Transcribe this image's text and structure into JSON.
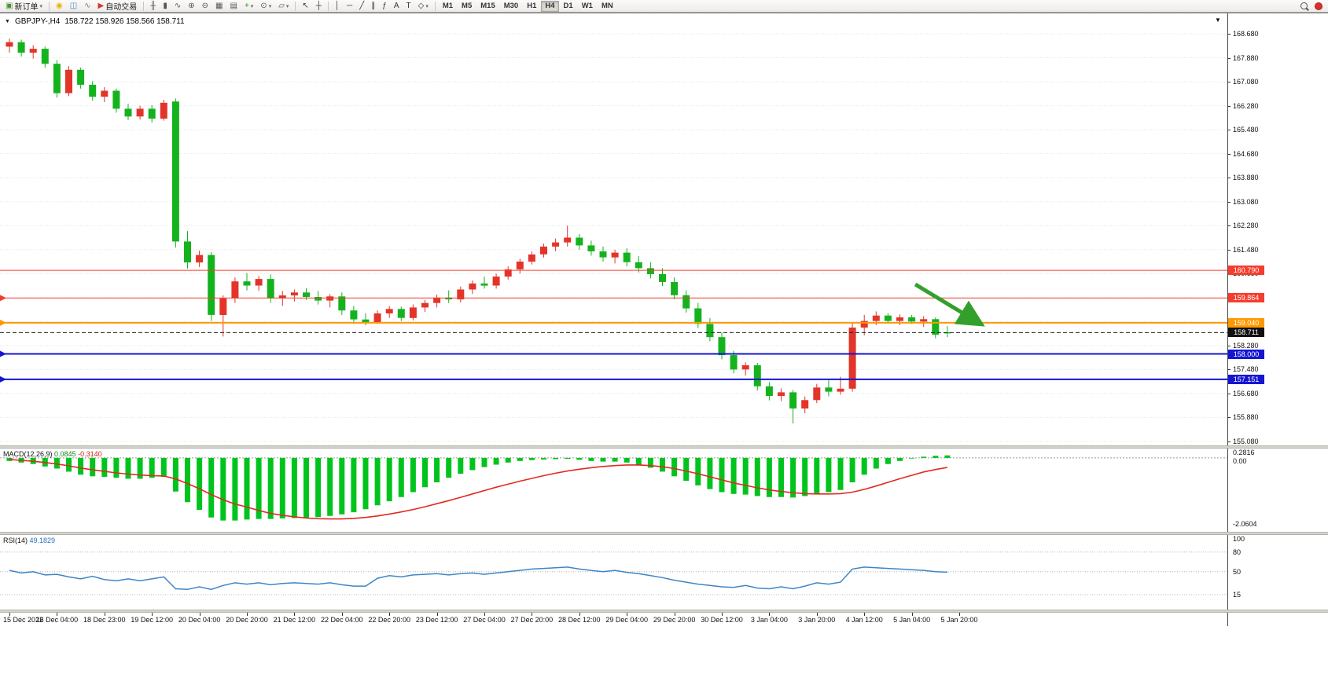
{
  "icons": {
    "caret_down": "▼",
    "caret_small": "▾"
  },
  "toolbar": {
    "items": [
      {
        "name": "new-order-button",
        "icon": "new-order",
        "glyph": "▣",
        "color": "#4f8f3c",
        "label": "新订单",
        "caret": true
      },
      {
        "type": "sep"
      },
      {
        "name": "ideas-button",
        "icon": "lightbulb",
        "glyph": "◉",
        "color": "#e2b400"
      },
      {
        "name": "community-button",
        "icon": "people",
        "glyph": "◫",
        "color": "#4d82c8"
      },
      {
        "name": "signals-button",
        "icon": "broadcast",
        "glyph": "∿",
        "color": "#7a7a7a"
      },
      {
        "name": "auto-trading-button",
        "icon": "play",
        "glyph": "▶",
        "color": "#d23b2f",
        "label": "自动交易"
      },
      {
        "type": "sep"
      },
      {
        "name": "bar-chart-button",
        "icon": "bar-chart",
        "glyph": "╫",
        "color": "#555"
      },
      {
        "name": "candlestick-button",
        "icon": "candlestick",
        "glyph": "▮",
        "color": "#555"
      },
      {
        "name": "line-chart-button",
        "icon": "line-chart",
        "glyph": "∿",
        "color": "#555"
      },
      {
        "name": "zoom-in-button",
        "icon": "zoom-in",
        "glyph": "⊕",
        "color": "#555"
      },
      {
        "name": "zoom-out-button",
        "icon": "zoom-out",
        "glyph": "⊖",
        "color": "#555"
      },
      {
        "name": "tile-windows-button",
        "icon": "tile-windows",
        "glyph": "▦",
        "color": "#555"
      },
      {
        "name": "auto-arrange-button",
        "icon": "grid",
        "glyph": "▤",
        "color": "#555"
      },
      {
        "name": "indicators-button",
        "icon": "indicator-plus",
        "glyph": "+",
        "color": "#1a9c1a",
        "caret": true
      },
      {
        "name": "periods-button",
        "icon": "clock",
        "glyph": "⊙",
        "color": "#555",
        "caret": true
      },
      {
        "name": "templates-button",
        "icon": "template",
        "glyph": "▱",
        "color": "#555",
        "caret": true
      },
      {
        "type": "sep"
      },
      {
        "name": "cursor-button",
        "icon": "cursor-arrow",
        "glyph": "↖",
        "color": "#333"
      },
      {
        "name": "crosshair-button",
        "icon": "crosshair",
        "glyph": "┼",
        "color": "#333"
      },
      {
        "type": "sep"
      },
      {
        "name": "vertical-line-button",
        "icon": "vertical-line",
        "glyph": "│",
        "color": "#333"
      },
      {
        "name": "horizontal-line-button",
        "icon": "horizontal-line",
        "glyph": "─",
        "color": "#333"
      },
      {
        "name": "trendline-button",
        "icon": "trendline",
        "glyph": "╱",
        "color": "#333"
      },
      {
        "name": "channel-button",
        "icon": "channel",
        "glyph": "∥",
        "color": "#333"
      },
      {
        "name": "fibonacci-button",
        "icon": "fibonacci",
        "glyph": "ƒ",
        "color": "#333"
      },
      {
        "name": "text-button",
        "icon": "text",
        "glyph": "A",
        "color": "#333"
      },
      {
        "name": "label-button",
        "icon": "text-label",
        "glyph": "T",
        "color": "#333"
      },
      {
        "name": "shapes-button",
        "icon": "shapes",
        "glyph": "◇",
        "color": "#333",
        "caret": true
      },
      {
        "type": "sep"
      },
      {
        "type": "timeframes"
      },
      {
        "type": "spacer"
      },
      {
        "name": "search-button",
        "type": "magnifier"
      },
      {
        "name": "alert-status-button",
        "type": "dot",
        "color": "#d93025"
      }
    ],
    "timeframes": [
      "M1",
      "M5",
      "M15",
      "M30",
      "H1",
      "H4",
      "D1",
      "W1",
      "MN"
    ],
    "active_timeframe": "H4"
  },
  "chart_data": [
    {
      "type": "candlestick",
      "title": "GBPJPY-,H4",
      "ohlc_text": "158.722 158.926 158.566 158.711",
      "ohlc": {
        "open": 158.722,
        "high": 158.926,
        "low": 158.566,
        "close": 158.711
      },
      "up_color": "#e3342a",
      "down_color": "#14b31e",
      "y_axis": {
        "max": 168.68,
        "min": 155.08,
        "step": 0.8,
        "labels": [
          "168.680",
          "167.880",
          "167.080",
          "166.280",
          "165.480",
          "164.680",
          "163.880",
          "163.080",
          "162.280",
          "161.480",
          "160.680",
          "159.880",
          "159.080",
          "158.280",
          "157.480",
          "156.680",
          "155.880",
          "155.080"
        ]
      },
      "hlines": [
        {
          "price": 160.79,
          "label": "160.790",
          "color": "#f53d2d",
          "width": 1,
          "marker": false
        },
        {
          "price": 159.864,
          "label": "159.864",
          "color": "#f53d2d",
          "width": 1,
          "marker": true
        },
        {
          "price": 159.04,
          "label": "159.040",
          "color": "#ff9800",
          "width": 2,
          "marker": true
        },
        {
          "price": 158.0,
          "label": "158.000",
          "color": "#1515d3",
          "width": 2,
          "marker": true
        },
        {
          "price": 157.151,
          "label": "157.151",
          "color": "#1515d3",
          "width": 2,
          "marker": true
        }
      ],
      "price_line": {
        "price": 158.711,
        "label": "158.711",
        "color": "#222222",
        "style": "dashed"
      },
      "arrow": {
        "from_idx": 76.3,
        "from_price": 160.32,
        "to_idx": 81.6,
        "to_price": 159.05,
        "color": "#33a02c"
      },
      "candles": [
        [
          168.25,
          168.52,
          168.05,
          168.4
        ],
        [
          168.4,
          168.48,
          167.92,
          168.05
        ],
        [
          168.05,
          168.3,
          167.85,
          168.18
        ],
        [
          168.18,
          168.25,
          167.55,
          167.68
        ],
        [
          167.68,
          167.8,
          166.55,
          166.7
        ],
        [
          166.7,
          167.6,
          166.6,
          167.48
        ],
        [
          167.48,
          167.55,
          166.85,
          166.98
        ],
        [
          166.98,
          167.1,
          166.45,
          166.58
        ],
        [
          166.58,
          166.9,
          166.4,
          166.78
        ],
        [
          166.78,
          166.85,
          166.05,
          166.18
        ],
        [
          166.18,
          166.35,
          165.8,
          165.92
        ],
        [
          165.92,
          166.28,
          165.82,
          166.18
        ],
        [
          166.18,
          166.3,
          165.72,
          165.85
        ],
        [
          165.85,
          166.48,
          165.78,
          166.38
        ],
        [
          166.42,
          166.52,
          161.55,
          161.75
        ],
        [
          161.75,
          162.1,
          160.85,
          161.05
        ],
        [
          161.05,
          161.45,
          160.9,
          161.3
        ],
        [
          161.3,
          161.4,
          159.1,
          159.3
        ],
        [
          159.3,
          159.95,
          158.58,
          159.85
        ],
        [
          159.85,
          160.55,
          159.7,
          160.42
        ],
        [
          160.42,
          160.7,
          160.12,
          160.28
        ],
        [
          160.28,
          160.6,
          160.1,
          160.5
        ],
        [
          160.5,
          160.65,
          159.7,
          159.85
        ],
        [
          159.85,
          160.1,
          159.6,
          159.95
        ],
        [
          159.95,
          160.15,
          159.75,
          160.05
        ],
        [
          160.05,
          160.2,
          159.8,
          159.9
        ],
        [
          159.9,
          160.1,
          159.65,
          159.78
        ],
        [
          159.78,
          160.0,
          159.55,
          159.92
        ],
        [
          159.92,
          160.05,
          159.3,
          159.45
        ],
        [
          159.45,
          159.6,
          159.0,
          159.15
        ],
        [
          159.15,
          159.35,
          158.95,
          159.05
        ],
        [
          159.05,
          159.45,
          159.0,
          159.35
        ],
        [
          159.35,
          159.6,
          159.2,
          159.5
        ],
        [
          159.5,
          159.58,
          159.1,
          159.2
        ],
        [
          159.2,
          159.65,
          159.12,
          159.55
        ],
        [
          159.55,
          159.8,
          159.4,
          159.7
        ],
        [
          159.7,
          159.98,
          159.55,
          159.88
        ],
        [
          159.88,
          160.12,
          159.7,
          159.82
        ],
        [
          159.82,
          160.25,
          159.72,
          160.15
        ],
        [
          160.15,
          160.45,
          160.0,
          160.35
        ],
        [
          160.35,
          160.58,
          160.18,
          160.28
        ],
        [
          160.28,
          160.68,
          160.18,
          160.58
        ],
        [
          160.58,
          160.92,
          160.48,
          160.82
        ],
        [
          160.82,
          161.18,
          160.68,
          161.08
        ],
        [
          161.08,
          161.42,
          160.98,
          161.32
        ],
        [
          161.32,
          161.68,
          161.22,
          161.58
        ],
        [
          161.58,
          161.85,
          161.42,
          161.72
        ],
        [
          161.72,
          162.28,
          161.58,
          161.88
        ],
        [
          161.88,
          162.0,
          161.48,
          161.62
        ],
        [
          161.62,
          161.78,
          161.28,
          161.42
        ],
        [
          161.42,
          161.58,
          161.08,
          161.22
        ],
        [
          161.22,
          161.48,
          161.02,
          161.38
        ],
        [
          161.38,
          161.52,
          160.92,
          161.06
        ],
        [
          161.06,
          161.26,
          160.72,
          160.86
        ],
        [
          160.86,
          161.06,
          160.52,
          160.66
        ],
        [
          160.66,
          160.86,
          160.26,
          160.4
        ],
        [
          160.4,
          160.55,
          159.82,
          159.96
        ],
        [
          159.96,
          160.12,
          159.38,
          159.52
        ],
        [
          159.52,
          159.7,
          158.86,
          159.0
        ],
        [
          159.0,
          159.2,
          158.42,
          158.56
        ],
        [
          158.56,
          158.72,
          157.82,
          157.96
        ],
        [
          157.96,
          158.1,
          157.35,
          157.48
        ],
        [
          157.48,
          157.72,
          157.28,
          157.62
        ],
        [
          157.62,
          157.7,
          156.78,
          156.92
        ],
        [
          156.92,
          157.06,
          156.45,
          156.6
        ],
        [
          156.6,
          156.85,
          156.42,
          156.72
        ],
        [
          156.72,
          156.8,
          155.68,
          156.18
        ],
        [
          156.18,
          156.58,
          156.02,
          156.46
        ],
        [
          156.46,
          157.0,
          156.36,
          156.88
        ],
        [
          156.88,
          157.12,
          156.58,
          156.74
        ],
        [
          156.74,
          157.24,
          156.64,
          156.84
        ],
        [
          156.84,
          159.02,
          156.74,
          158.88
        ],
        [
          158.88,
          159.3,
          158.62,
          159.1
        ],
        [
          159.1,
          159.42,
          158.96,
          159.28
        ],
        [
          159.28,
          159.36,
          159.0,
          159.1
        ],
        [
          159.1,
          159.32,
          158.96,
          159.22
        ],
        [
          159.22,
          159.3,
          159.0,
          159.08
        ],
        [
          159.08,
          159.26,
          158.9,
          159.16
        ],
        [
          159.16,
          159.22,
          158.52,
          158.64
        ],
        [
          158.722,
          158.926,
          158.566,
          158.711
        ]
      ],
      "x_labels": [
        {
          "text": "15 Dec 2022",
          "idx": 0
        },
        {
          "text": "16 Dec 04:00",
          "idx": 4
        },
        {
          "text": "18 Dec 23:00",
          "idx": 8
        },
        {
          "text": "19 Dec 12:00",
          "idx": 12
        },
        {
          "text": "20 Dec 04:00",
          "idx": 16
        },
        {
          "text": "20 Dec 20:00",
          "idx": 20
        },
        {
          "text": "21 Dec 12:00",
          "idx": 24
        },
        {
          "text": "22 Dec 04:00",
          "idx": 28
        },
        {
          "text": "22 Dec 20:00",
          "idx": 32
        },
        {
          "text": "23 Dec 12:00",
          "idx": 36
        },
        {
          "text": "27 Dec 04:00",
          "idx": 40
        },
        {
          "text": "27 Dec 20:00",
          "idx": 44
        },
        {
          "text": "28 Dec 12:00",
          "idx": 48
        },
        {
          "text": "29 Dec 04:00",
          "idx": 52
        },
        {
          "text": "29 Dec 20:00",
          "idx": 56
        },
        {
          "text": "30 Dec 12:00",
          "idx": 60
        },
        {
          "text": "3 Jan 04:00",
          "idx": 64
        },
        {
          "text": "3 Jan 20:00",
          "idx": 68
        },
        {
          "text": "4 Jan 12:00",
          "idx": 72
        },
        {
          "text": "5 Jan 04:00",
          "idx": 76
        },
        {
          "text": "5 Jan 20:00",
          "idx": 80
        }
      ]
    },
    {
      "type": "bar",
      "label": "MACD(12,26,9)",
      "main_value": "0.0845",
      "signal_value": "-0.3140",
      "hist_color": "#00c41d",
      "signal_color": "#e02a20",
      "range": [
        0.2816,
        -2.0604
      ],
      "axis_labels": [
        {
          "text": "0.2816",
          "v": 0.2816
        },
        {
          "text": "0.00",
          "v": 0
        },
        {
          "text": "-2.0604",
          "v": -2.0604
        }
      ],
      "hist": [
        -0.1,
        -0.15,
        -0.2,
        -0.28,
        -0.35,
        -0.45,
        -0.55,
        -0.6,
        -0.62,
        -0.65,
        -0.68,
        -0.68,
        -0.65,
        -0.62,
        -1.1,
        -1.45,
        -1.7,
        -1.95,
        -2.05,
        -2.05,
        -2.02,
        -2.0,
        -2.0,
        -1.98,
        -1.97,
        -1.96,
        -1.94,
        -1.9,
        -1.85,
        -1.78,
        -1.68,
        -1.55,
        -1.42,
        -1.28,
        -1.12,
        -0.96,
        -0.8,
        -0.65,
        -0.52,
        -0.4,
        -0.3,
        -0.22,
        -0.15,
        -0.1,
        -0.07,
        -0.05,
        -0.04,
        -0.03,
        -0.06,
        -0.1,
        -0.12,
        -0.12,
        -0.15,
        -0.22,
        -0.32,
        -0.45,
        -0.6,
        -0.75,
        -0.9,
        -1.02,
        -1.12,
        -1.18,
        -1.2,
        -1.25,
        -1.28,
        -1.28,
        -1.3,
        -1.25,
        -1.18,
        -1.12,
        -1.05,
        -0.8,
        -0.55,
        -0.35,
        -0.2,
        -0.1,
        -0.02,
        0.04,
        0.07,
        0.0845
      ],
      "signal": [
        -0.05,
        -0.08,
        -0.11,
        -0.15,
        -0.2,
        -0.26,
        -0.33,
        -0.39,
        -0.44,
        -0.49,
        -0.53,
        -0.56,
        -0.58,
        -0.59,
        -0.69,
        -0.84,
        -1.01,
        -1.2,
        -1.37,
        -1.51,
        -1.61,
        -1.72,
        -1.82,
        -1.88,
        -1.93,
        -1.97,
        -1.99,
        -2.0,
        -2.0,
        -1.98,
        -1.95,
        -1.9,
        -1.84,
        -1.77,
        -1.69,
        -1.6,
        -1.5,
        -1.4,
        -1.29,
        -1.18,
        -1.07,
        -0.96,
        -0.86,
        -0.76,
        -0.67,
        -0.58,
        -0.5,
        -0.43,
        -0.37,
        -0.32,
        -0.28,
        -0.25,
        -0.23,
        -0.23,
        -0.25,
        -0.29,
        -0.35,
        -0.43,
        -0.52,
        -0.62,
        -0.72,
        -0.82,
        -0.9,
        -0.98,
        -1.05,
        -1.1,
        -1.14,
        -1.17,
        -1.18,
        -1.18,
        -1.17,
        -1.12,
        -1.03,
        -0.92,
        -0.8,
        -0.68,
        -0.57,
        -0.46,
        -0.38,
        -0.314
      ]
    },
    {
      "type": "line",
      "label": "RSI(14)",
      "value": "49.1829",
      "line_color": "#3e85c6",
      "levels": [
        100,
        80,
        50,
        15
      ],
      "axis_labels": [
        {
          "text": "100",
          "v": 100
        },
        {
          "text": "80",
          "v": 80
        },
        {
          "text": "50",
          "v": 50
        },
        {
          "text": "15",
          "v": 15
        }
      ],
      "values": [
        52,
        48,
        50,
        45,
        46,
        42,
        39,
        43,
        38,
        36,
        39,
        36,
        39,
        42,
        24,
        23,
        27,
        23,
        29,
        33,
        31,
        33,
        30,
        32,
        33,
        32,
        31,
        33,
        30,
        28,
        28,
        40,
        44,
        42,
        45,
        46,
        47,
        45,
        47,
        48,
        46,
        48,
        50,
        52,
        54,
        55,
        56,
        57,
        54,
        52,
        50,
        52,
        49,
        47,
        44,
        41,
        37,
        34,
        31,
        29,
        27,
        26,
        29,
        25,
        24,
        27,
        24,
        28,
        33,
        31,
        34,
        54,
        57,
        56,
        55,
        54,
        53,
        52,
        50,
        49.2
      ]
    }
  ]
}
